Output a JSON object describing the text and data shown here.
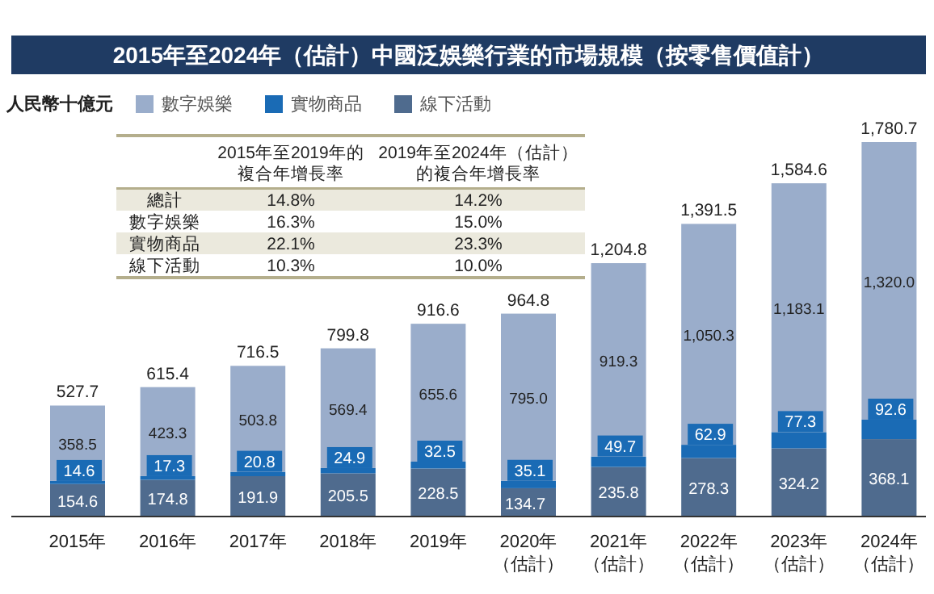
{
  "chart_data": {
    "type": "bar",
    "stacked": true,
    "title": "2015年至2024年（估計）中國泛娛樂行業的市場規模（按零售價值計）",
    "ylabel": "人民幣十億元",
    "categories": [
      "2015年",
      "2016年",
      "2017年",
      "2018年",
      "2019年",
      "2020年（估計）",
      "2021年（估計）",
      "2022年（估計）",
      "2023年（估計）",
      "2024年（估計）"
    ],
    "series": [
      {
        "name": "線下活動",
        "color": "#4f6b8e",
        "values": [
          154.6,
          174.8,
          191.9,
          205.5,
          228.5,
          134.7,
          235.8,
          278.3,
          324.2,
          368.1
        ],
        "value_labels": [
          "154.6",
          "174.8",
          "191.9",
          "205.5",
          "228.5",
          "134.7",
          "235.8",
          "278.3",
          "324.2",
          "368.1"
        ]
      },
      {
        "name": "實物商品",
        "color": "#1a6bb5",
        "values": [
          14.6,
          17.3,
          20.8,
          24.9,
          32.5,
          35.1,
          49.7,
          62.9,
          77.3,
          92.6
        ],
        "value_labels": [
          "14.6",
          "17.3",
          "20.8",
          "24.9",
          "32.5",
          "35.1",
          "49.7",
          "62.9",
          "77.3",
          "92.6"
        ]
      },
      {
        "name": "數字娛樂",
        "color": "#9aadcb",
        "values": [
          358.5,
          423.3,
          503.8,
          569.4,
          655.6,
          795.0,
          919.3,
          1050.3,
          1183.1,
          1320.0
        ],
        "value_labels": [
          "358.5",
          "423.3",
          "503.8",
          "569.4",
          "655.6",
          "795.0",
          "919.3",
          "1,050.3",
          "1,183.1",
          "1,320.0"
        ]
      }
    ],
    "totals": [
      "527.7",
      "615.4",
      "716.5",
      "799.8",
      "916.6",
      "964.8",
      "1,204.8",
      "1,391.5",
      "1,584.6",
      "1,780.7"
    ],
    "legend": "top left",
    "annotations": [
      "2015年至2019年的複合年增長率",
      "2019年至2024年（估計）的複合年增長率",
      "總計",
      "14.8%",
      "14.2%",
      "數字娛樂",
      "16.3%",
      "15.0%",
      "實物商品",
      "22.1%",
      "23.3%",
      "線下活動",
      "10.3%",
      "10.0%"
    ]
  }
}
